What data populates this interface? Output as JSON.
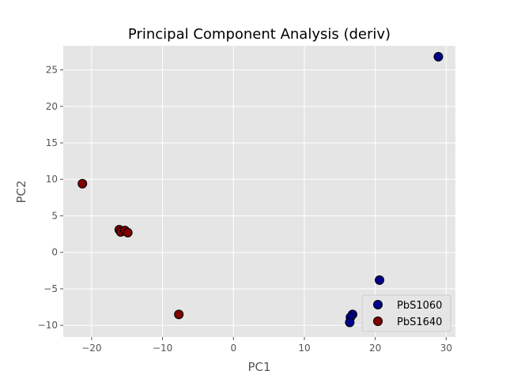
{
  "chart_data": {
    "type": "scatter",
    "title": "Principal Component Analysis (deriv)",
    "xlabel": "PC1",
    "ylabel": "PC2",
    "xlim": [
      -24,
      31.3
    ],
    "ylim": [
      -11.6,
      28.3
    ],
    "xticks": [
      -20,
      -10,
      0,
      10,
      20,
      30
    ],
    "yticks": [
      -10,
      -5,
      0,
      5,
      10,
      15,
      20,
      25
    ],
    "xtick_labels": [
      "−20",
      "−10",
      "0",
      "10",
      "20",
      "30"
    ],
    "ytick_labels": [
      "−10",
      "−5",
      "0",
      "5",
      "10",
      "15",
      "20",
      "25"
    ],
    "grid": true,
    "legend_position": "lower-right",
    "series": [
      {
        "name": "PbS1060",
        "color": "#00008b",
        "points": [
          {
            "x": 28.9,
            "y": 26.8
          },
          {
            "x": 20.6,
            "y": -3.8
          },
          {
            "x": 16.8,
            "y": -8.5
          },
          {
            "x": 16.5,
            "y": -8.9
          },
          {
            "x": 16.4,
            "y": -9.6
          }
        ]
      },
      {
        "name": "PbS1640",
        "color": "#800000",
        "points": [
          {
            "x": -21.3,
            "y": 9.4
          },
          {
            "x": -16.1,
            "y": 3.1
          },
          {
            "x": -15.9,
            "y": 2.8
          },
          {
            "x": -15.3,
            "y": 3.0
          },
          {
            "x": -14.9,
            "y": 2.7
          },
          {
            "x": -7.7,
            "y": -8.5
          }
        ]
      }
    ]
  }
}
